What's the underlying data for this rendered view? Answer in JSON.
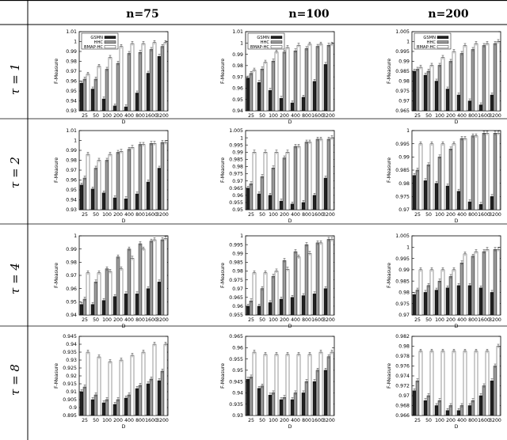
{
  "column_headers": [
    "n=75",
    "n=100",
    "n=200"
  ],
  "row_headers": [
    "τ = 1",
    "τ = 2",
    "τ = 4",
    "τ = 8"
  ],
  "colors": {
    "GSMN": "#222222",
    "HHC": "#9a9a9a",
    "BMAP-HC": "#ffffff",
    "border": "#000000"
  },
  "chart_data": [
    {
      "type": "bar",
      "row": 0,
      "col": 0,
      "xlabel": "D",
      "ylabel": "F-Measure",
      "categories": [
        "25",
        "50",
        "100",
        "200",
        "400",
        "800",
        "1600",
        "3200"
      ],
      "yticks": [
        "0.93",
        "0.94",
        "0.95",
        "0.96",
        "0.97",
        "0.98",
        "0.99",
        "1",
        "1.01"
      ],
      "ylim": [
        0.93,
        1.01
      ],
      "legend": {
        "position": "top-left",
        "entries": [
          "GSMN",
          "HHC",
          "BMAP-HC"
        ]
      },
      "series": [
        {
          "name": "GSMN",
          "values": [
            0.958,
            0.952,
            0.942,
            0.935,
            0.934,
            0.948,
            0.968,
            0.985
          ]
        },
        {
          "name": "HHC",
          "values": [
            0.962,
            0.962,
            0.972,
            0.978,
            0.988,
            0.989,
            0.992,
            0.995
          ]
        },
        {
          "name": "BMAP-HC",
          "values": [
            0.967,
            0.975,
            0.984,
            0.995,
            0.998,
            0.998,
            0.999,
            0.999
          ]
        }
      ]
    },
    {
      "type": "bar",
      "row": 0,
      "col": 1,
      "xlabel": "D",
      "ylabel": "F-Measure",
      "categories": [
        "25",
        "50",
        "100",
        "200",
        "400",
        "800",
        "1600",
        "3200"
      ],
      "yticks": [
        "0.94",
        "0.95",
        "0.96",
        "0.97",
        "0.98",
        "0.99",
        "1",
        "1.01"
      ],
      "ylim": [
        0.94,
        1.01
      ],
      "legend": {
        "position": "top-left",
        "entries": [
          "GSMN",
          "HHC",
          "BMAP-HC"
        ]
      },
      "series": [
        {
          "name": "GSMN",
          "values": [
            0.969,
            0.965,
            0.958,
            0.951,
            0.947,
            0.952,
            0.966,
            0.981
          ]
        },
        {
          "name": "HHC",
          "values": [
            0.973,
            0.977,
            0.984,
            0.992,
            0.993,
            0.995,
            0.997,
            0.998
          ]
        },
        {
          "name": "BMAP-HC",
          "values": [
            0.976,
            0.983,
            0.992,
            0.996,
            0.998,
            0.999,
            0.999,
            0.999
          ]
        }
      ]
    },
    {
      "type": "bar",
      "row": 0,
      "col": 2,
      "xlabel": "D",
      "ylabel": "F-Measure",
      "categories": [
        "25",
        "50",
        "100",
        "200",
        "400",
        "800",
        "1600",
        "3200"
      ],
      "yticks": [
        "0.965",
        "0.97",
        "0.975",
        "0.98",
        "0.985",
        "0.99",
        "0.995",
        "1",
        "1.005"
      ],
      "ylim": [
        0.965,
        1.005
      ],
      "legend": {
        "position": "top-left",
        "entries": [
          "GSMN",
          "HHC",
          "BMAP-HC"
        ]
      },
      "series": [
        {
          "name": "GSMN",
          "values": [
            0.985,
            0.983,
            0.98,
            0.976,
            0.973,
            0.97,
            0.968,
            0.973
          ]
        },
        {
          "name": "HHC",
          "values": [
            0.986,
            0.985,
            0.988,
            0.99,
            0.994,
            0.996,
            0.998,
            0.999
          ]
        },
        {
          "name": "BMAP-HC",
          "values": [
            0.987,
            0.988,
            0.992,
            0.995,
            0.998,
            0.999,
            0.999,
            1.0
          ]
        }
      ]
    },
    {
      "type": "bar",
      "row": 1,
      "col": 0,
      "xlabel": "D",
      "ylabel": "F-Measure",
      "categories": [
        "25",
        "50",
        "100",
        "200",
        "400",
        "800",
        "1600",
        "3200"
      ],
      "yticks": [
        "0.93",
        "0.94",
        "0.95",
        "0.96",
        "0.97",
        "0.98",
        "0.99",
        "1",
        "1.01"
      ],
      "ylim": [
        0.93,
        1.01
      ],
      "series": [
        {
          "name": "GSMN",
          "values": [
            0.955,
            0.951,
            0.947,
            0.942,
            0.941,
            0.946,
            0.958,
            0.972
          ]
        },
        {
          "name": "HHC",
          "values": [
            0.962,
            0.972,
            0.98,
            0.988,
            0.991,
            0.996,
            0.997,
            0.998
          ]
        },
        {
          "name": "BMAP-HC",
          "values": [
            0.986,
            0.98,
            0.986,
            0.989,
            0.993,
            0.996,
            0.997,
            0.998
          ]
        }
      ]
    },
    {
      "type": "bar",
      "row": 1,
      "col": 1,
      "xlabel": "D",
      "ylabel": "F-Measure",
      "categories": [
        "25",
        "50",
        "100",
        "200",
        "400",
        "800",
        "1600",
        "3200"
      ],
      "yticks": [
        "0.95",
        "0.955",
        "0.96",
        "0.965",
        "0.97",
        "0.975",
        "0.98",
        "0.985",
        "0.99",
        "0.995",
        "1",
        "1.005"
      ],
      "ylim": [
        0.95,
        1.005
      ],
      "series": [
        {
          "name": "GSMN",
          "values": [
            0.965,
            0.961,
            0.96,
            0.956,
            0.954,
            0.955,
            0.96,
            0.972
          ]
        },
        {
          "name": "HHC",
          "values": [
            0.968,
            0.973,
            0.979,
            0.986,
            0.994,
            0.997,
            0.999,
            0.999
          ]
        },
        {
          "name": "BMAP-HC",
          "values": [
            0.99,
            0.99,
            0.99,
            0.99,
            0.994,
            0.997,
            0.999,
            1.0
          ]
        }
      ]
    },
    {
      "type": "bar",
      "row": 1,
      "col": 2,
      "xlabel": "D",
      "ylabel": "F-Measure",
      "categories": [
        "25",
        "50",
        "100",
        "200",
        "400",
        "800",
        "1600",
        "3200"
      ],
      "yticks": [
        "0.97",
        "0.975",
        "0.98",
        "0.985",
        "0.99",
        "0.995",
        "1"
      ],
      "ylim": [
        0.97,
        1.0
      ],
      "series": [
        {
          "name": "GSMN",
          "values": [
            0.983,
            0.981,
            0.98,
            0.979,
            0.977,
            0.973,
            0.972,
            0.975
          ]
        },
        {
          "name": "HHC",
          "values": [
            0.985,
            0.987,
            0.99,
            0.993,
            0.997,
            0.998,
            0.999,
            0.999
          ]
        },
        {
          "name": "BMAP-HC",
          "values": [
            0.995,
            0.995,
            0.995,
            0.995,
            0.997,
            0.998,
            0.999,
            0.999
          ]
        }
      ]
    },
    {
      "type": "bar",
      "row": 2,
      "col": 0,
      "xlabel": "D",
      "ylabel": "F-Measure",
      "categories": [
        "25",
        "50",
        "100",
        "200",
        "400",
        "800",
        "1600",
        "3200"
      ],
      "yticks": [
        "0.94",
        "0.95",
        "0.96",
        "0.97",
        "0.98",
        "0.99",
        "1"
      ],
      "ylim": [
        0.94,
        1.0
      ],
      "series": [
        {
          "name": "GSMN",
          "values": [
            0.948,
            0.948,
            0.951,
            0.954,
            0.956,
            0.956,
            0.96,
            0.965
          ]
        },
        {
          "name": "HHC",
          "values": [
            0.952,
            0.965,
            0.975,
            0.984,
            0.99,
            0.994,
            0.996,
            0.997
          ]
        },
        {
          "name": "BMAP-HC",
          "values": [
            0.972,
            0.972,
            0.973,
            0.975,
            0.983,
            0.99,
            0.997,
            0.998
          ]
        }
      ]
    },
    {
      "type": "bar",
      "row": 2,
      "col": 1,
      "xlabel": "D",
      "ylabel": "F-Measure",
      "categories": [
        "25",
        "50",
        "100",
        "200",
        "400",
        "800",
        "1600",
        "3200"
      ],
      "yticks": [
        "0.955",
        "0.96",
        "0.965",
        "0.97",
        "0.975",
        "0.98",
        "0.985",
        "0.99",
        "0.995",
        "1"
      ],
      "ylim": [
        0.955,
        1.0
      ],
      "series": [
        {
          "name": "GSMN",
          "values": [
            0.96,
            0.96,
            0.962,
            0.964,
            0.965,
            0.966,
            0.967,
            0.97
          ]
        },
        {
          "name": "HHC",
          "values": [
            0.963,
            0.97,
            0.977,
            0.986,
            0.991,
            0.995,
            0.996,
            0.998
          ]
        },
        {
          "name": "BMAP-HC",
          "values": [
            0.979,
            0.979,
            0.98,
            0.981,
            0.988,
            0.99,
            0.996,
            0.998
          ]
        }
      ]
    },
    {
      "type": "bar",
      "row": 2,
      "col": 2,
      "xlabel": "D",
      "ylabel": "F-Measure",
      "categories": [
        "25",
        "50",
        "100",
        "200",
        "400",
        "800",
        "1600",
        "3200"
      ],
      "yticks": [
        "0.97",
        "0.975",
        "0.98",
        "0.985",
        "0.99",
        "0.995",
        "1",
        "1.005"
      ],
      "ylim": [
        0.97,
        1.005
      ],
      "series": [
        {
          "name": "GSMN",
          "values": [
            0.979,
            0.98,
            0.981,
            0.982,
            0.983,
            0.983,
            0.982,
            0.98
          ]
        },
        {
          "name": "HHC",
          "values": [
            0.981,
            0.983,
            0.985,
            0.987,
            0.993,
            0.996,
            0.998,
            0.999
          ]
        },
        {
          "name": "BMAP-HC",
          "values": [
            0.99,
            0.99,
            0.99,
            0.99,
            0.997,
            0.998,
            0.999,
            0.999
          ]
        }
      ]
    },
    {
      "type": "bar",
      "row": 3,
      "col": 0,
      "xlabel": "D",
      "ylabel": "F-Measure",
      "categories": [
        "25",
        "50",
        "100",
        "200",
        "400",
        "800",
        "1600",
        "3200"
      ],
      "yticks": [
        "0.895",
        "0.9",
        "0.905",
        "0.91",
        "0.915",
        "0.92",
        "0.925",
        "0.93",
        "0.935",
        "0.94",
        "0.945"
      ],
      "ylim": [
        0.895,
        0.945
      ],
      "series": [
        {
          "name": "GSMN",
          "values": [
            0.91,
            0.905,
            0.903,
            0.902,
            0.906,
            0.912,
            0.915,
            0.917
          ]
        },
        {
          "name": "HHC",
          "values": [
            0.913,
            0.908,
            0.905,
            0.905,
            0.908,
            0.914,
            0.918,
            0.923
          ]
        },
        {
          "name": "BMAP-HC",
          "values": [
            0.935,
            0.932,
            0.929,
            0.93,
            0.933,
            0.935,
            0.94,
            0.94
          ]
        }
      ]
    },
    {
      "type": "bar",
      "row": 3,
      "col": 1,
      "xlabel": "D",
      "ylabel": "F-Measure",
      "categories": [
        "25",
        "50",
        "100",
        "200",
        "400",
        "800",
        "1600",
        "3200"
      ],
      "yticks": [
        "0.93",
        "0.935",
        "0.94",
        "0.945",
        "0.95",
        "0.955",
        "0.96",
        "0.965"
      ],
      "ylim": [
        0.93,
        0.965
      ],
      "series": [
        {
          "name": "GSMN",
          "values": [
            0.946,
            0.942,
            0.939,
            0.937,
            0.937,
            0.94,
            0.945,
            0.95
          ]
        },
        {
          "name": "HHC",
          "values": [
            0.947,
            0.943,
            0.94,
            0.938,
            0.94,
            0.945,
            0.95,
            0.956
          ]
        },
        {
          "name": "BMAP-HC",
          "values": [
            0.958,
            0.957,
            0.957,
            0.957,
            0.957,
            0.957,
            0.958,
            0.958
          ]
        }
      ]
    },
    {
      "type": "bar",
      "row": 3,
      "col": 2,
      "xlabel": "D",
      "ylabel": "F-Measure",
      "categories": [
        "25",
        "50",
        "100",
        "200",
        "400",
        "800",
        "1600",
        "3200"
      ],
      "yticks": [
        "0.966",
        "0.968",
        "0.97",
        "0.972",
        "0.974",
        "0.976",
        "0.978",
        "0.98",
        "0.982"
      ],
      "ylim": [
        0.966,
        0.982
      ],
      "series": [
        {
          "name": "GSMN",
          "values": [
            0.971,
            0.969,
            0.968,
            0.967,
            0.967,
            0.968,
            0.97,
            0.973
          ]
        },
        {
          "name": "HHC",
          "values": [
            0.973,
            0.97,
            0.969,
            0.968,
            0.968,
            0.969,
            0.972,
            0.976
          ]
        },
        {
          "name": "BMAP-HC",
          "values": [
            0.979,
            0.979,
            0.979,
            0.979,
            0.979,
            0.979,
            0.979,
            0.98
          ]
        }
      ]
    }
  ]
}
